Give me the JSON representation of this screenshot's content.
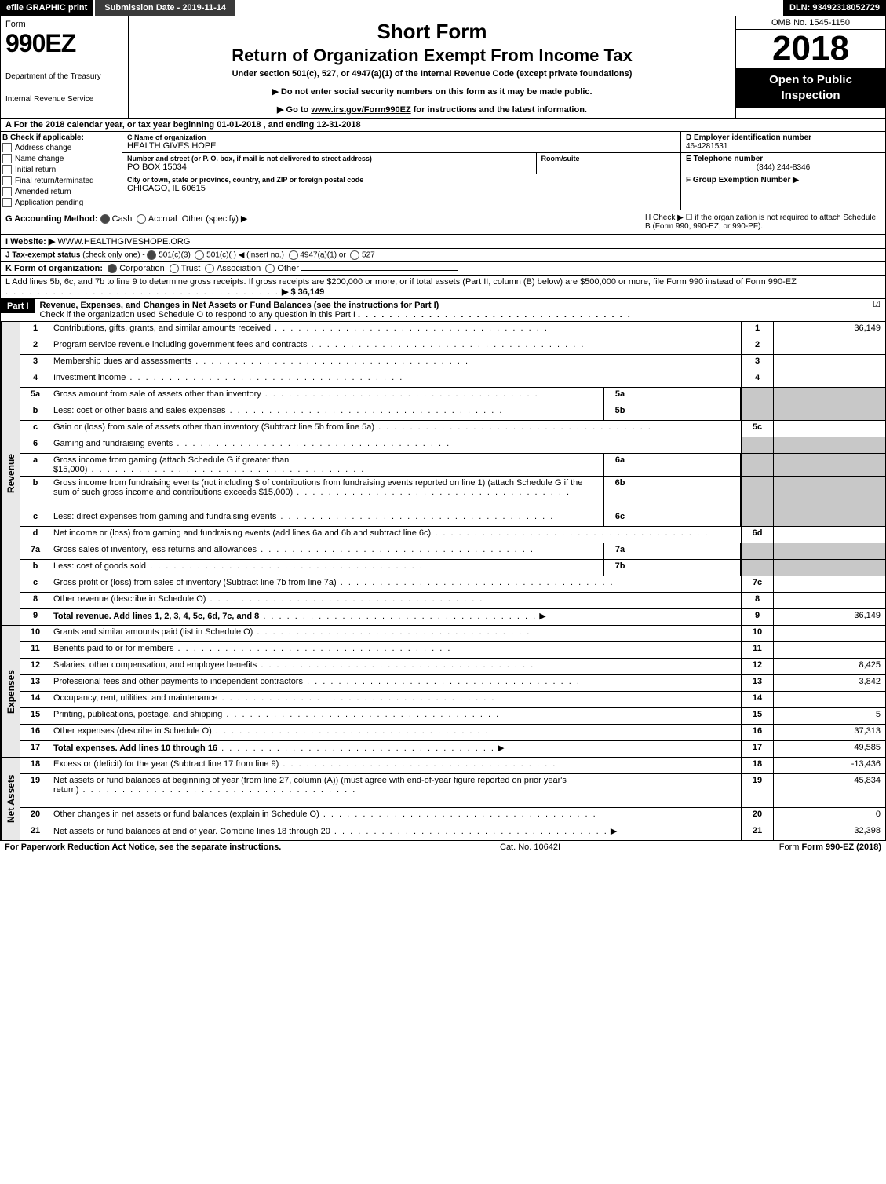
{
  "topbar": {
    "efile": "efile GRAPHIC print",
    "submission": "Submission Date - 2019-11-14",
    "dln": "DLN: 93492318052729"
  },
  "header": {
    "form_word": "Form",
    "form_num": "990EZ",
    "dept": "Department of the Treasury",
    "irs": "Internal Revenue Service",
    "short": "Short Form",
    "title2": "Return of Organization Exempt From Income Tax",
    "under": "Under section 501(c), 527, or 4947(a)(1) of the Internal Revenue Code (except private foundations)",
    "note1": "▶ Do not enter social security numbers on this form as it may be made public.",
    "note2_pre": "▶ Go to ",
    "note2_link": "www.irs.gov/Form990EZ",
    "note2_post": " for instructions and the latest information.",
    "omb": "OMB No. 1545-1150",
    "year": "2018",
    "open": "Open to Public Inspection"
  },
  "calendar": {
    "pre": "A For the 2018 calendar year, or tax year beginning ",
    "begin": "01-01-2018",
    "mid": " , and ending ",
    "end": "12-31-2018"
  },
  "sectionB": {
    "label": "B Check if applicable:",
    "items": [
      "Address change",
      "Name change",
      "Initial return",
      "Final return/terminated",
      "Amended return",
      "Application pending"
    ]
  },
  "sectionC": {
    "name_lbl": "C Name of organization",
    "name_val": "HEALTH GIVES HOPE",
    "addr_lbl": "Number and street (or P. O. box, if mail is not delivered to street address)",
    "addr_val": "PO BOX 15034",
    "room_lbl": "Room/suite",
    "city_lbl": "City or town, state or province, country, and ZIP or foreign postal code",
    "city_val": "CHICAGO, IL  60615"
  },
  "sectionD": {
    "ein_lbl": "D Employer identification number",
    "ein_val": "46-4281531",
    "tel_lbl": "E Telephone number",
    "tel_val": "(844) 244-8346",
    "grp_lbl": "F Group Exemption Number  ▶"
  },
  "sectionG": {
    "label": "G Accounting Method:",
    "cash": "Cash",
    "accrual": "Accrual",
    "other": "Other (specify) ▶"
  },
  "sectionH": {
    "text": "H  Check ▶   ☐  if the organization is not required to attach Schedule B (Form 990, 990-EZ, or 990-PF)."
  },
  "sectionI": {
    "label": "I Website: ▶",
    "val": "WWW.HEALTHGIVESHOPE.ORG"
  },
  "sectionJ": {
    "label": "J Tax-exempt status",
    "sub": "(check only one) - ",
    "opts": [
      "501(c)(3)",
      "501(c)(  ) ◀ (insert no.)",
      "4947(a)(1) or",
      "527"
    ]
  },
  "sectionK": {
    "label": "K Form of organization:",
    "opts": [
      "Corporation",
      "Trust",
      "Association",
      "Other"
    ]
  },
  "sectionL": {
    "text": "L Add lines 5b, 6c, and 7b to line 9 to determine gross receipts. If gross receipts are $200,000 or more, or if total assets (Part II, column (B) below) are $500,000 or more, file Form 990 instead of Form 990-EZ",
    "arrow": "▶ $ 36,149"
  },
  "part1": {
    "tab": "Part I",
    "title": "Revenue, Expenses, and Changes in Net Assets or Fund Balances (see the instructions for Part I)",
    "check": "Check if the organization used Schedule O to respond to any question in this Part I"
  },
  "sections": {
    "revenue": "Revenue",
    "expenses": "Expenses",
    "netassets": "Net Assets"
  },
  "lines": [
    {
      "n": "1",
      "desc": "Contributions, gifts, grants, and similar amounts received",
      "ln": "1",
      "val": "36,149"
    },
    {
      "n": "2",
      "desc": "Program service revenue including government fees and contracts",
      "ln": "2",
      "val": ""
    },
    {
      "n": "3",
      "desc": "Membership dues and assessments",
      "ln": "3",
      "val": ""
    },
    {
      "n": "4",
      "desc": "Investment income",
      "ln": "4",
      "val": ""
    },
    {
      "n": "5a",
      "desc": "Gross amount from sale of assets other than inventory",
      "sub": "5a",
      "subval": "",
      "grey": true
    },
    {
      "n": "b",
      "desc": "Less: cost or other basis and sales expenses",
      "sub": "5b",
      "subval": "",
      "grey": true
    },
    {
      "n": "c",
      "desc": "Gain or (loss) from sale of assets other than inventory (Subtract line 5b from line 5a)",
      "ln": "5c",
      "val": ""
    },
    {
      "n": "6",
      "desc": "Gaming and fundraising events",
      "grey": true,
      "noln": true
    },
    {
      "n": "a",
      "desc": "Gross income from gaming (attach Schedule G if greater than $15,000)",
      "sub": "6a",
      "subval": "",
      "grey": true
    },
    {
      "n": "b",
      "desc": "Gross income from fundraising events (not including $                        of contributions from fundraising events reported on line 1) (attach Schedule G if the sum of such gross income and contributions exceeds $15,000)",
      "sub": "6b",
      "subval": "",
      "grey": true,
      "tall": true
    },
    {
      "n": "c",
      "desc": "Less: direct expenses from gaming and fundraising events",
      "sub": "6c",
      "subval": "",
      "grey": true
    },
    {
      "n": "d",
      "desc": "Net income or (loss) from gaming and fundraising events (add lines 6a and 6b and subtract line 6c)",
      "ln": "6d",
      "val": ""
    },
    {
      "n": "7a",
      "desc": "Gross sales of inventory, less returns and allowances",
      "sub": "7a",
      "subval": "",
      "grey": true
    },
    {
      "n": "b",
      "desc": "Less: cost of goods sold",
      "sub": "7b",
      "subval": "",
      "grey": true
    },
    {
      "n": "c",
      "desc": "Gross profit or (loss) from sales of inventory (Subtract line 7b from line 7a)",
      "ln": "7c",
      "val": ""
    },
    {
      "n": "8",
      "desc": "Other revenue (describe in Schedule O)",
      "ln": "8",
      "val": ""
    },
    {
      "n": "9",
      "desc": "Total revenue. Add lines 1, 2, 3, 4, 5c, 6d, 7c, and 8",
      "ln": "9",
      "val": "36,149",
      "bold": true,
      "arrow": true
    }
  ],
  "exp_lines": [
    {
      "n": "10",
      "desc": "Grants and similar amounts paid (list in Schedule O)",
      "ln": "10",
      "val": ""
    },
    {
      "n": "11",
      "desc": "Benefits paid to or for members",
      "ln": "11",
      "val": ""
    },
    {
      "n": "12",
      "desc": "Salaries, other compensation, and employee benefits",
      "ln": "12",
      "val": "8,425"
    },
    {
      "n": "13",
      "desc": "Professional fees and other payments to independent contractors",
      "ln": "13",
      "val": "3,842"
    },
    {
      "n": "14",
      "desc": "Occupancy, rent, utilities, and maintenance",
      "ln": "14",
      "val": ""
    },
    {
      "n": "15",
      "desc": "Printing, publications, postage, and shipping",
      "ln": "15",
      "val": "5"
    },
    {
      "n": "16",
      "desc": "Other expenses (describe in Schedule O)",
      "ln": "16",
      "val": "37,313"
    },
    {
      "n": "17",
      "desc": "Total expenses. Add lines 10 through 16",
      "ln": "17",
      "val": "49,585",
      "bold": true,
      "arrow": true
    }
  ],
  "na_lines": [
    {
      "n": "18",
      "desc": "Excess or (deficit) for the year (Subtract line 17 from line 9)",
      "ln": "18",
      "val": "-13,436"
    },
    {
      "n": "19",
      "desc": "Net assets or fund balances at beginning of year (from line 27, column (A)) (must agree with end-of-year figure reported on prior year's return)",
      "ln": "19",
      "val": "45,834",
      "tall": true
    },
    {
      "n": "20",
      "desc": "Other changes in net assets or fund balances (explain in Schedule O)",
      "ln": "20",
      "val": "0"
    },
    {
      "n": "21",
      "desc": "Net assets or fund balances at end of year. Combine lines 18 through 20",
      "ln": "21",
      "val": "32,398",
      "arrow": true
    }
  ],
  "footer": {
    "left": "For Paperwork Reduction Act Notice, see the separate instructions.",
    "mid": "Cat. No. 10642I",
    "right": "Form 990-EZ (2018)"
  }
}
